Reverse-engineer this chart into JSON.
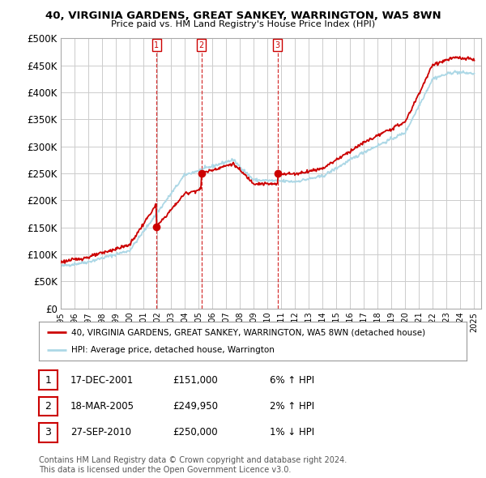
{
  "title": "40, VIRGINIA GARDENS, GREAT SANKEY, WARRINGTON, WA5 8WN",
  "subtitle": "Price paid vs. HM Land Registry's House Price Index (HPI)",
  "ylabel_ticks": [
    "£0",
    "£50K",
    "£100K",
    "£150K",
    "£200K",
    "£250K",
    "£300K",
    "£350K",
    "£400K",
    "£450K",
    "£500K"
  ],
  "ytick_values": [
    0,
    50000,
    100000,
    150000,
    200000,
    250000,
    300000,
    350000,
    400000,
    450000,
    500000
  ],
  "xlim_start": 1995.0,
  "xlim_end": 2025.5,
  "ylim": [
    0,
    500000
  ],
  "sale_dates": [
    2001.96,
    2005.21,
    2010.74
  ],
  "sale_prices": [
    151000,
    249950,
    250000
  ],
  "sale_labels": [
    "1",
    "2",
    "3"
  ],
  "hpi_color": "#ADD8E6",
  "sale_color": "#CC0000",
  "legend_entries": [
    "40, VIRGINIA GARDENS, GREAT SANKEY, WARRINGTON, WA5 8WN (detached house)",
    "HPI: Average price, detached house, Warrington"
  ],
  "table_rows": [
    {
      "num": "1",
      "date": "17-DEC-2001",
      "price": "£151,000",
      "hpi": "6% ↑ HPI"
    },
    {
      "num": "2",
      "date": "18-MAR-2005",
      "price": "£249,950",
      "hpi": "2% ↑ HPI"
    },
    {
      "num": "3",
      "date": "27-SEP-2010",
      "price": "£250,000",
      "hpi": "1% ↓ HPI"
    }
  ],
  "footer": "Contains HM Land Registry data © Crown copyright and database right 2024.\nThis data is licensed under the Open Government Licence v3.0.",
  "background_color": "#ffffff",
  "grid_color": "#cccccc",
  "xtick_years": [
    1995,
    1996,
    1997,
    1998,
    1999,
    2000,
    2001,
    2002,
    2003,
    2004,
    2005,
    2006,
    2007,
    2008,
    2009,
    2010,
    2011,
    2012,
    2013,
    2014,
    2015,
    2016,
    2017,
    2018,
    2019,
    2020,
    2021,
    2022,
    2023,
    2024,
    2025
  ]
}
